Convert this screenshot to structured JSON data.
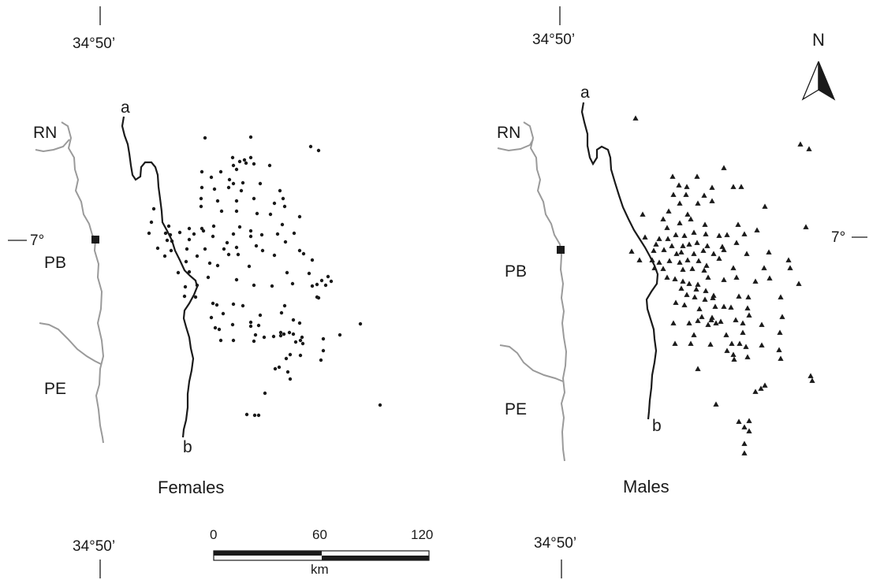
{
  "longitude_top_left": "34°50’",
  "longitude_top_right": "34°50’",
  "longitude_bottom_left": "34°50’",
  "longitude_bottom_right": "34°50’",
  "latitude_left": "7°",
  "latitude_right": "7°",
  "north_label": "N",
  "states_left": {
    "rn": "RN",
    "pb": "PB",
    "pe": "PE"
  },
  "states_right": {
    "rn": "RN",
    "pb": "PB",
    "pe": "PE"
  },
  "transect_left": {
    "start": "a",
    "end": "b"
  },
  "transect_right": {
    "start": "a",
    "end": "b"
  },
  "panel_titles": {
    "left": "Females",
    "right": "Males"
  },
  "scale_bar": {
    "ticks": [
      "0",
      "60",
      "120"
    ],
    "unit": "km"
  },
  "colors": {
    "ink": "#1a1a1a",
    "border": "#9a9a9a",
    "river": "#1a1a1a",
    "background": "#ffffff"
  },
  "legend_markers": {
    "females": "circle",
    "males": "triangle"
  }
}
